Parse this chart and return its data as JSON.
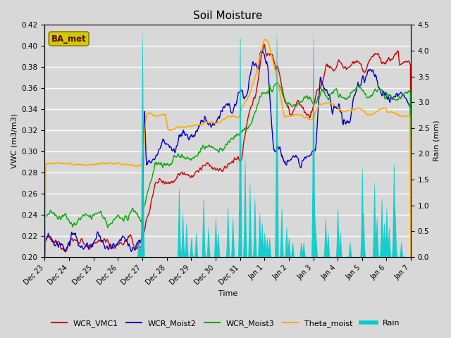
{
  "title": "Soil Moisture",
  "ylabel_left": "VWC (m3/m3)",
  "ylabel_right": "Rain (mm)",
  "xlabel": "Time",
  "ylim_left": [
    0.2,
    0.42
  ],
  "ylim_right": [
    0.0,
    4.5
  ],
  "background_color": "#d8d8d8",
  "plot_bg_color": "#d8d8d8",
  "grid_color": "white",
  "legend_entries": [
    "WCR_VMC1",
    "WCR_Moist2",
    "WCR_Moist3",
    "Theta_moist",
    "Rain"
  ],
  "line_colors": {
    "WCR_VMC1": "#cc0000",
    "WCR_Moist2": "#0000cc",
    "WCR_Moist3": "#00aa00",
    "Theta_moist": "#ffaa00",
    "Rain": "#00cccc"
  },
  "station_label": "BA_met",
  "station_label_color": "#660000",
  "station_box_facecolor": "#cccc00",
  "station_box_edgecolor": "#886600",
  "yticks_left": [
    0.2,
    0.22,
    0.24,
    0.26,
    0.28,
    0.3,
    0.32,
    0.34,
    0.36,
    0.38,
    0.4,
    0.42
  ],
  "yticks_right": [
    0.0,
    0.5,
    1.0,
    1.5,
    2.0,
    2.5,
    3.0,
    3.5,
    4.0,
    4.5
  ],
  "tick_labels_x": [
    "Dec 23",
    "Dec 24",
    "Dec 25",
    "Dec 26",
    "Dec 27",
    "Dec 28",
    "Dec 29",
    "Dec 30",
    "Dec 31",
    "Jan 1",
    "Jan 2",
    "Jan 3",
    "Jan 4",
    "Jan 5",
    "Jan 6",
    "Jan 7"
  ]
}
